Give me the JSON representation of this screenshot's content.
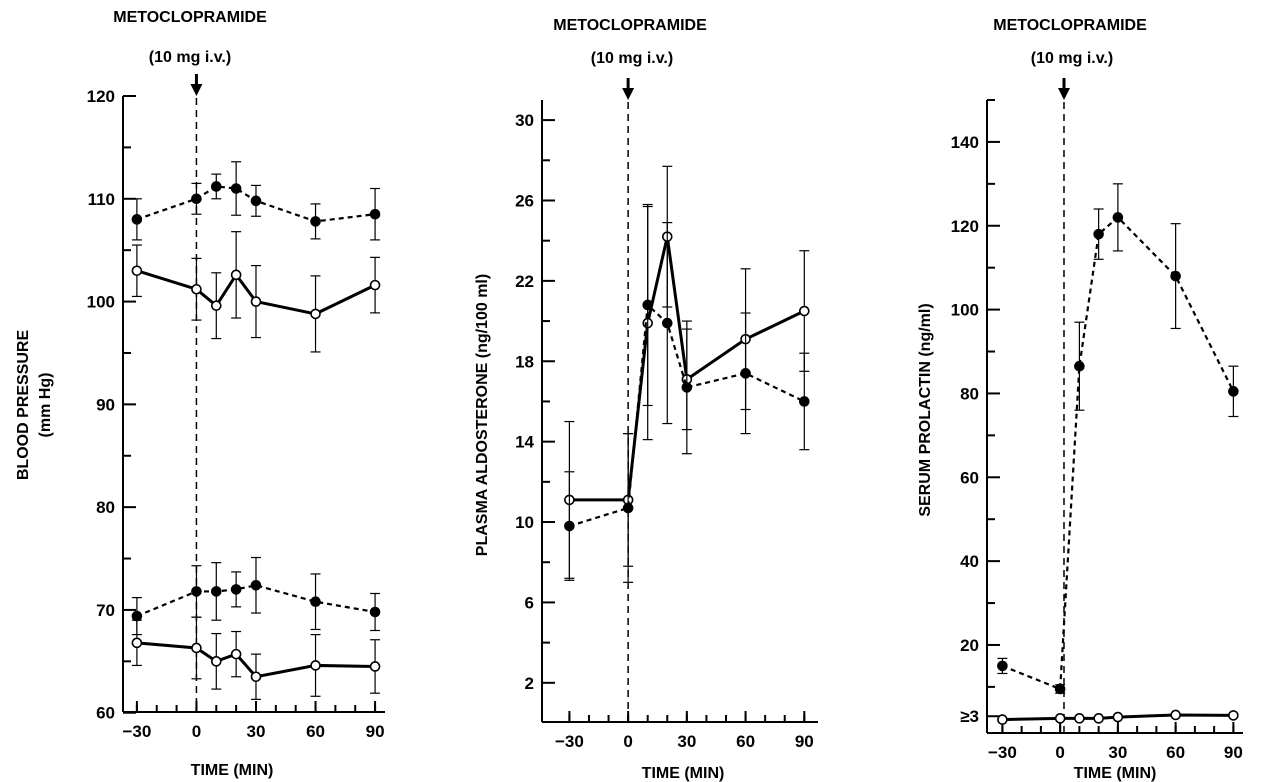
{
  "chart_data": [
    {
      "type": "line",
      "annotation": {
        "line1": "METOCLOPRAMIDE",
        "line2": "(10 mg i.v.)"
      },
      "ylabel": {
        "line1": "BLOOD PRESSURE",
        "line2": "(mm Hg)"
      },
      "xlabel": "TIME (MIN)",
      "xlim": [
        -37,
        95
      ],
      "ylim": [
        59,
        120
      ],
      "x_ticks": [
        {
          "value": -30,
          "label": "−30"
        },
        {
          "value": 0,
          "label": "0"
        },
        {
          "value": 30,
          "label": "30"
        },
        {
          "value": 60,
          "label": "60"
        },
        {
          "value": 90,
          "label": "90"
        }
      ],
      "x_minor_ticks": [
        -30,
        -20,
        -10,
        0,
        10,
        20,
        30,
        40,
        50,
        60,
        70,
        80,
        90
      ],
      "y_ticks": [
        {
          "value": 60,
          "label": "60"
        },
        {
          "value": 70,
          "label": "70"
        },
        {
          "value": 80,
          "label": "80"
        },
        {
          "value": 90,
          "label": "90"
        },
        {
          "value": 100,
          "label": "100"
        },
        {
          "value": 110,
          "label": "110"
        },
        {
          "value": 120,
          "label": "120"
        }
      ],
      "y_minor_ticks": [
        65,
        75,
        85,
        95,
        105,
        115
      ],
      "event_x": 0,
      "series": [
        {
          "style": "dashed",
          "marker": "filled",
          "x": [
            -30,
            0,
            10,
            20,
            30,
            60,
            90
          ],
          "y": [
            108,
            110,
            111.2,
            111,
            109.8,
            107.8,
            108.5
          ],
          "err": [
            2,
            1.5,
            1.2,
            2.6,
            1.5,
            1.7,
            2.5
          ]
        },
        {
          "style": "solid",
          "marker": "open",
          "x": [
            -30,
            0,
            10,
            20,
            30,
            60,
            90
          ],
          "y": [
            103,
            101.2,
            99.6,
            102.6,
            100,
            98.8,
            101.6
          ],
          "err": [
            2.5,
            3,
            3.2,
            4.2,
            3.5,
            3.7,
            2.7
          ]
        },
        {
          "style": "dashed",
          "marker": "filled",
          "x": [
            -30,
            0,
            10,
            20,
            30,
            60,
            90
          ],
          "y": [
            69.4,
            71.8,
            71.8,
            72,
            72.4,
            70.8,
            69.8
          ],
          "err": [
            1.8,
            2.5,
            2.8,
            1.7,
            2.7,
            2.7,
            1.8
          ]
        },
        {
          "style": "solid",
          "marker": "open",
          "x": [
            -30,
            0,
            10,
            20,
            30,
            60,
            90
          ],
          "y": [
            66.8,
            66.3,
            65,
            65.7,
            63.5,
            64.6,
            64.5
          ],
          "err": [
            2.2,
            3,
            2.7,
            2.2,
            2.2,
            3,
            2.6
          ]
        }
      ]
    },
    {
      "type": "line",
      "annotation": {
        "line1": "METOCLOPRAMIDE",
        "line2": "(10 mg i.v.)"
      },
      "ylabel": {
        "line1": "PLASMA ALDOSTERONE (ng/100 ml)",
        "line2": ""
      },
      "xlabel": "TIME (MIN)",
      "xlim": [
        -44,
        97
      ],
      "ylim": [
        0,
        31
      ],
      "x_ticks": [
        {
          "value": -30,
          "label": "−30"
        },
        {
          "value": 0,
          "label": "0"
        },
        {
          "value": 30,
          "label": "30"
        },
        {
          "value": 60,
          "label": "60"
        },
        {
          "value": 90,
          "label": "90"
        }
      ],
      "x_minor_ticks": [
        -30,
        -20,
        -10,
        0,
        10,
        20,
        30,
        40,
        50,
        60,
        70,
        80,
        90
      ],
      "y_ticks": [
        {
          "value": 2,
          "label": "2"
        },
        {
          "value": 6,
          "label": "6"
        },
        {
          "value": 10,
          "label": "10"
        },
        {
          "value": 14,
          "label": "14"
        },
        {
          "value": 18,
          "label": "18"
        },
        {
          "value": 22,
          "label": "22"
        },
        {
          "value": 26,
          "label": "26"
        },
        {
          "value": 30,
          "label": "30"
        }
      ],
      "y_minor_ticks": [
        4,
        8,
        12,
        16,
        20,
        24,
        28
      ],
      "event_x": 0,
      "series": [
        {
          "style": "solid",
          "marker": "open",
          "x": [
            -30,
            0,
            10,
            20,
            30,
            60,
            90
          ],
          "y": [
            11.1,
            11.1,
            19.9,
            24.2,
            17.1,
            19.1,
            20.5
          ],
          "err": [
            3.9,
            3.3,
            5.8,
            3.5,
            2.5,
            3.5,
            3
          ]
        },
        {
          "style": "dashed",
          "marker": "filled",
          "x": [
            -30,
            0,
            10,
            20,
            30,
            60,
            90
          ],
          "y": [
            9.8,
            10.7,
            20.8,
            19.9,
            16.7,
            17.4,
            16
          ],
          "err": [
            2.7,
            3.7,
            5,
            5,
            3.3,
            3,
            2.4
          ]
        }
      ]
    },
    {
      "type": "line",
      "annotation": {
        "line1": "METOCLOPRAMIDE",
        "line2": "(10 mg i.v.)"
      },
      "ylabel": {
        "line1": "SERUM PROLACTIN (ng/ml)",
        "line2": ""
      },
      "xlabel": "TIME (MIN)",
      "xlim": [
        -38,
        95
      ],
      "ylim": [
        -1,
        150
      ],
      "x_ticks": [
        {
          "value": -30,
          "label": "−30"
        },
        {
          "value": 0,
          "label": "0"
        },
        {
          "value": 30,
          "label": "30"
        },
        {
          "value": 60,
          "label": "60"
        },
        {
          "value": 90,
          "label": "90"
        }
      ],
      "x_minor_ticks": [
        -30,
        -20,
        -10,
        0,
        10,
        20,
        30,
        40,
        50,
        60,
        70,
        80,
        90
      ],
      "y_ticks": [
        {
          "value": 3,
          "label": "≥3"
        },
        {
          "value": 20,
          "label": "20"
        },
        {
          "value": 40,
          "label": "40"
        },
        {
          "value": 60,
          "label": "60"
        },
        {
          "value": 80,
          "label": "80"
        },
        {
          "value": 100,
          "label": "100"
        },
        {
          "value": 120,
          "label": "120"
        },
        {
          "value": 140,
          "label": "140"
        }
      ],
      "y_minor_ticks": [
        10,
        30,
        50,
        70,
        90,
        110,
        130,
        150
      ],
      "event_x": 2,
      "series": [
        {
          "style": "dashed",
          "marker": "filled",
          "x": [
            -30,
            0,
            10,
            20,
            30,
            60,
            90
          ],
          "y": [
            15,
            9.5,
            86.5,
            118,
            122,
            108,
            80.5
          ],
          "err": [
            1.8,
            1,
            10.5,
            6,
            8,
            12.5,
            6
          ]
        },
        {
          "style": "solid",
          "marker": "open",
          "x": [
            -30,
            0,
            10,
            20,
            30,
            60,
            90
          ],
          "y": [
            2.2,
            2.5,
            2.5,
            2.5,
            2.8,
            3.3,
            3.2
          ],
          "err": [
            0,
            0,
            0,
            0,
            0,
            0,
            0
          ]
        }
      ]
    }
  ]
}
